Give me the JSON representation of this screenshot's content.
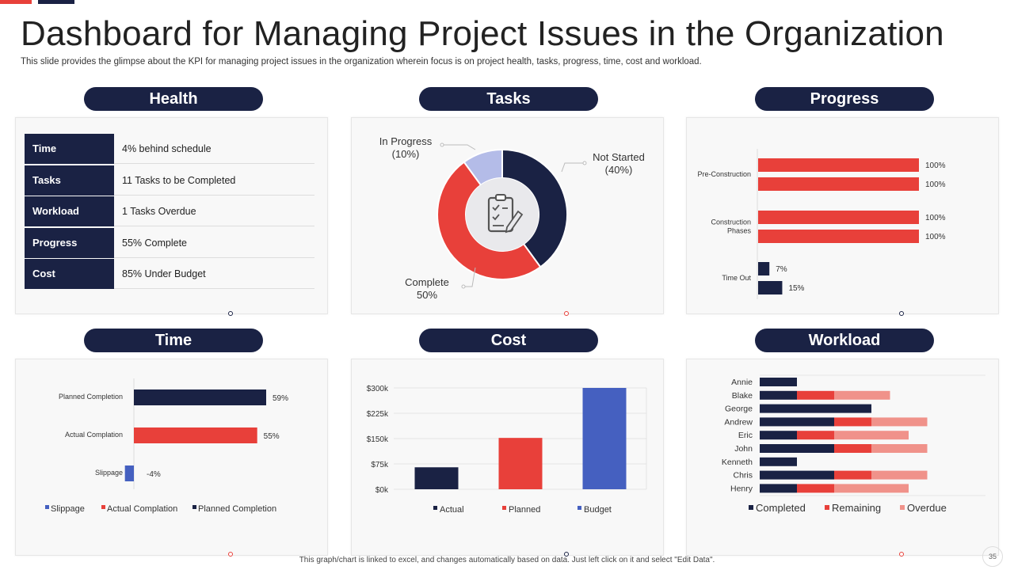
{
  "title": "Dashboard for Managing Project Issues in the Organization",
  "subtitle": "This slide provides the glimpse about the KPI for managing project issues in the organization wherein focus is on project health, tasks, progress, time, cost and workload.",
  "footer": "This graph/chart is linked to excel, and changes automatically based on data. Just left click on it and select \"Edit Data\".",
  "page_number": "35",
  "colors": {
    "navy": "#1a2244",
    "red": "#e8403a",
    "pink": "#f0928a",
    "blue": "#4560c0",
    "lavender": "#b4bce8"
  },
  "sections": {
    "health": "Health",
    "tasks": "Tasks",
    "progress": "Progress",
    "time": "Time",
    "cost": "Cost",
    "workload": "Workload"
  },
  "health": {
    "rows": [
      {
        "label": "Time",
        "value": "4% behind schedule"
      },
      {
        "label": "Tasks",
        "value": "11 Tasks to be Completed"
      },
      {
        "label": "Workload",
        "value": "1 Tasks Overdue"
      },
      {
        "label": "Progress",
        "value": "55% Complete"
      },
      {
        "label": "Cost",
        "value": "85% Under Budget"
      }
    ]
  },
  "icons": {
    "tasks_center": "clipboard-icon"
  },
  "chart_data": [
    {
      "id": "tasks",
      "type": "pie",
      "title": "Tasks",
      "slices": [
        {
          "name": "Not Started",
          "value": 40,
          "label": "Not Started",
          "pct": "(40%)",
          "color": "#1a2244"
        },
        {
          "name": "Complete",
          "value": 50,
          "label": "Complete",
          "pct": "50%",
          "color": "#e8403a"
        },
        {
          "name": "In Progress",
          "value": 10,
          "label": "In Progress",
          "pct": "(10%)",
          "color": "#b4bce8"
        }
      ]
    },
    {
      "id": "progress",
      "type": "bar",
      "orientation": "horizontal",
      "title": "Progress",
      "xlim": [
        0,
        100
      ],
      "groups": [
        {
          "label": "Pre-Construction",
          "lines": [
            "Pre-Construction"
          ],
          "bars": [
            {
              "value": 100,
              "label": "100%",
              "color": "#e8403a"
            },
            {
              "value": 100,
              "label": "100%",
              "color": "#e8403a"
            }
          ]
        },
        {
          "label": "Construction Phases",
          "lines": [
            "Construction",
            "Phases"
          ],
          "bars": [
            {
              "value": 100,
              "label": "100%",
              "color": "#e8403a"
            },
            {
              "value": 100,
              "label": "100%",
              "color": "#e8403a"
            }
          ]
        },
        {
          "label": "Time Out",
          "lines": [
            "Time Out"
          ],
          "bars": [
            {
              "value": 7,
              "label": "7%",
              "color": "#1a2244"
            },
            {
              "value": 15,
              "label": "15%",
              "color": "#1a2244"
            }
          ]
        }
      ]
    },
    {
      "id": "time",
      "type": "bar",
      "orientation": "horizontal",
      "title": "Time",
      "categories": [
        "Planned Completion",
        "Actual Complation",
        "Slippage"
      ],
      "values": [
        59,
        55,
        -4
      ],
      "value_labels": [
        "59%",
        "55%",
        "-4%"
      ],
      "colors": [
        "#1a2244",
        "#e8403a",
        "#4560c0"
      ],
      "legend": [
        "Slippage",
        "Actual Complation",
        "Planned Completion"
      ],
      "legend_colors": [
        "#4560c0",
        "#e8403a",
        "#1a2244"
      ],
      "xlim": [
        -5,
        60
      ]
    },
    {
      "id": "cost",
      "type": "bar",
      "title": "Cost",
      "categories": [
        "Actual",
        "Planned",
        "Budget"
      ],
      "values": [
        65000,
        152000,
        300000
      ],
      "colors": [
        "#1a2244",
        "#e8403a",
        "#4560c0"
      ],
      "ylim": [
        0,
        300000
      ],
      "yticks": [
        0,
        75000,
        150000,
        225000,
        300000
      ],
      "ytick_labels": [
        "$0k",
        "$75k",
        "$150k",
        "$225k",
        "$300k"
      ],
      "legend": [
        "Actual",
        "Planned",
        "Budget"
      ]
    },
    {
      "id": "workload",
      "type": "bar",
      "orientation": "horizontal",
      "stacked": true,
      "title": "Workload",
      "categories": [
        "Annie",
        "Blake",
        "George",
        "Andrew",
        "Eric",
        "John",
        "Kenneth",
        "Chris",
        "Henry"
      ],
      "series": [
        {
          "name": "Completed",
          "color": "#1a2244",
          "values": [
            1,
            1,
            3,
            2,
            1,
            2,
            1,
            2,
            1
          ]
        },
        {
          "name": "Remaining",
          "color": "#e8403a",
          "values": [
            0,
            1,
            0,
            1,
            1,
            1,
            0,
            1,
            1
          ]
        },
        {
          "name": "Overdue",
          "color": "#f0928a",
          "values": [
            0,
            1.5,
            0,
            1.5,
            2,
            1.5,
            0,
            1.5,
            2
          ]
        }
      ],
      "xlim": [
        0,
        6
      ]
    }
  ]
}
